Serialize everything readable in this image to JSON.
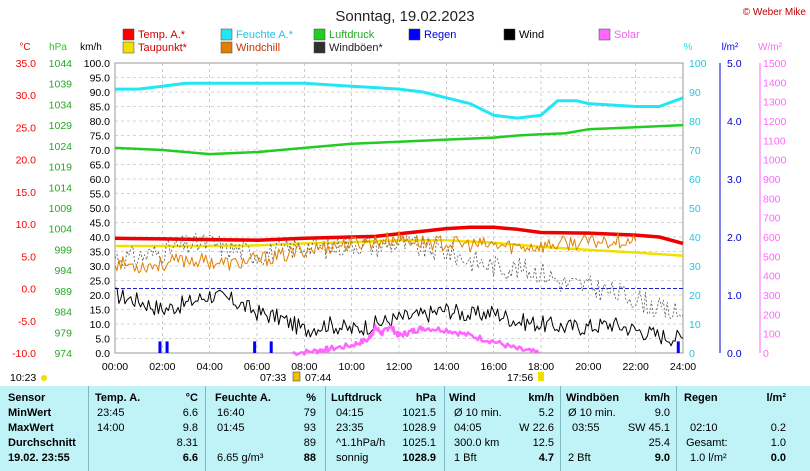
{
  "header": {
    "title": "Sonntag, 19.02.2023",
    "credit": "© Weber Mike"
  },
  "legend": [
    {
      "name": "Temp. A.*",
      "color": "#ff0000"
    },
    {
      "name": "Feuchte A.*",
      "color": "#22e6f2"
    },
    {
      "name": "Luftdruck",
      "color": "#22cc22"
    },
    {
      "name": "Regen",
      "color": "#0000ff"
    },
    {
      "name": "Wind",
      "color": "#000000"
    },
    {
      "name": "Solar",
      "color": "#ff66ff"
    },
    {
      "name": "Taupunkt*",
      "color": "#f0e000"
    },
    {
      "name": "Windchill",
      "color": "#e08000"
    },
    {
      "name": "Windböen*",
      "color": "#303030"
    }
  ],
  "axis_units": {
    "temp": "°C",
    "pressure": "hPa",
    "wind": "km/h",
    "humidity": "%",
    "rain": "l/m²",
    "solar": "W/m²"
  },
  "ticks": {
    "temp": [
      "35.0",
      "30.0",
      "25.0",
      "20.0",
      "15.0",
      "10.0",
      "5.0",
      "0.0",
      "-5.0",
      "-10.0"
    ],
    "pressure": [
      "1044",
      "1039",
      "1034",
      "1029",
      "1024",
      "1019",
      "1014",
      "1009",
      "1004",
      "999",
      "994",
      "989",
      "984",
      "979",
      "974"
    ],
    "wind": [
      "100.0",
      "95.0",
      "90.0",
      "85.0",
      "80.0",
      "75.0",
      "70.0",
      "65.0",
      "60.0",
      "55.0",
      "50.0",
      "45.0",
      "40.0",
      "35.0",
      "30.0",
      "25.0",
      "20.0",
      "15.0",
      "10.0",
      "5.0",
      "0.0"
    ],
    "humidity": [
      "100",
      "90",
      "80",
      "70",
      "60",
      "50",
      "40",
      "30",
      "20",
      "10",
      "0"
    ],
    "rain": [
      "5.0",
      "4.0",
      "3.0",
      "2.0",
      "1.0",
      "0.0"
    ],
    "solar": [
      "1500",
      "1400",
      "1300",
      "1200",
      "1100",
      "1000",
      "900",
      "800",
      "700",
      "600",
      "500",
      "400",
      "300",
      "200",
      "100",
      "0"
    ],
    "time": [
      "00:00",
      "02:00",
      "04:00",
      "06:00",
      "08:00",
      "10:00",
      "12:00",
      "14:00",
      "16:00",
      "18:00",
      "20:00",
      "22:00",
      "24:00"
    ]
  },
  "markers": {
    "left_time": "10:23",
    "sunrise": "07:33",
    "sunrise2": "07:44",
    "sunset": "17:56"
  },
  "chart_data": {
    "type": "line",
    "title": "Sonntag, 19.02.2023",
    "x_unit": "hour",
    "xlim": [
      0,
      24
    ],
    "series": [
      {
        "name": "Temp. A.*",
        "unit": "°C",
        "ylim": [
          -10,
          35
        ],
        "points": [
          [
            0,
            7.8
          ],
          [
            2,
            7.7
          ],
          [
            4,
            7.6
          ],
          [
            6,
            7.5
          ],
          [
            8,
            7.8
          ],
          [
            10,
            8.0
          ],
          [
            11,
            8.1
          ],
          [
            12,
            8.5
          ],
          [
            13,
            8.9
          ],
          [
            14,
            9.3
          ],
          [
            15,
            9.5
          ],
          [
            16,
            9.5
          ],
          [
            17,
            9.2
          ],
          [
            18,
            8.7
          ],
          [
            20,
            8.6
          ],
          [
            22,
            8.3
          ],
          [
            23,
            8.0
          ],
          [
            24,
            7.0
          ]
        ]
      },
      {
        "name": "Taupunkt*",
        "unit": "°C",
        "ylim": [
          -10,
          35
        ],
        "points": [
          [
            0,
            6.6
          ],
          [
            2,
            6.6
          ],
          [
            4,
            6.6
          ],
          [
            6,
            6.7
          ],
          [
            8,
            7.0
          ],
          [
            10,
            7.2
          ],
          [
            12,
            7.5
          ],
          [
            14,
            7.5
          ],
          [
            16,
            7.1
          ],
          [
            18,
            6.5
          ],
          [
            20,
            6.0
          ],
          [
            22,
            5.6
          ],
          [
            24,
            5.1
          ]
        ]
      },
      {
        "name": "Feuchte A.*",
        "unit": "%",
        "ylim": [
          0,
          100
        ],
        "points": [
          [
            0,
            91
          ],
          [
            1,
            91
          ],
          [
            2,
            92
          ],
          [
            3,
            93
          ],
          [
            4,
            93
          ],
          [
            6,
            93
          ],
          [
            8,
            93
          ],
          [
            10,
            92
          ],
          [
            12,
            91
          ],
          [
            13,
            90
          ],
          [
            14,
            88
          ],
          [
            15,
            86
          ],
          [
            16,
            82
          ],
          [
            17,
            81
          ],
          [
            18,
            82
          ],
          [
            18.7,
            87
          ],
          [
            19.5,
            87
          ],
          [
            20,
            86
          ],
          [
            22,
            85
          ],
          [
            23,
            85
          ],
          [
            24,
            88
          ]
        ]
      },
      {
        "name": "Luftdruck",
        "unit": "hPa",
        "ylim": [
          974,
          1044
        ],
        "points": [
          [
            0,
            1023.5
          ],
          [
            2,
            1023
          ],
          [
            4,
            1022
          ],
          [
            6,
            1022.5
          ],
          [
            8,
            1023.5
          ],
          [
            10,
            1024.5
          ],
          [
            12,
            1025
          ],
          [
            14,
            1025.5
          ],
          [
            16,
            1026
          ],
          [
            17,
            1026.5
          ],
          [
            18,
            1026.8
          ],
          [
            19,
            1027
          ],
          [
            20,
            1028
          ],
          [
            22,
            1028.5
          ],
          [
            24,
            1029
          ]
        ]
      },
      {
        "name": "Wind",
        "unit": "km/h",
        "ylim": [
          0,
          100
        ],
        "points": [
          [
            0,
            20
          ],
          [
            1,
            18
          ],
          [
            2,
            15
          ],
          [
            3,
            17
          ],
          [
            4,
            20
          ],
          [
            5,
            18
          ],
          [
            6,
            14
          ],
          [
            7,
            12
          ],
          [
            8,
            8
          ],
          [
            9,
            10
          ],
          [
            10,
            8
          ],
          [
            11,
            10
          ],
          [
            12,
            12
          ],
          [
            13,
            13
          ],
          [
            14,
            15
          ],
          [
            15,
            13
          ],
          [
            16,
            14
          ],
          [
            17,
            11
          ],
          [
            18,
            10
          ],
          [
            19,
            9
          ],
          [
            20,
            9
          ],
          [
            21,
            10
          ],
          [
            22,
            8
          ],
          [
            23,
            6
          ],
          [
            24,
            5
          ]
        ]
      },
      {
        "name": "Windböen*",
        "unit": "km/h",
        "ylim": [
          0,
          100
        ],
        "points": [
          [
            0,
            33
          ],
          [
            1,
            33
          ],
          [
            2,
            35
          ],
          [
            3,
            37
          ],
          [
            4,
            38
          ],
          [
            5,
            36
          ],
          [
            6,
            34
          ],
          [
            7,
            35
          ],
          [
            8,
            37
          ],
          [
            9,
            36
          ],
          [
            10,
            38
          ],
          [
            11,
            37
          ],
          [
            12,
            38
          ],
          [
            13,
            36
          ],
          [
            14,
            35
          ],
          [
            15,
            32
          ],
          [
            16,
            30
          ],
          [
            17,
            29
          ],
          [
            18,
            28
          ],
          [
            19,
            24
          ],
          [
            20,
            23
          ],
          [
            21,
            21
          ],
          [
            22,
            19
          ],
          [
            23,
            15
          ],
          [
            24,
            13
          ]
        ]
      },
      {
        "name": "Windchill",
        "unit": "°C",
        "ylim": [
          -10,
          35
        ],
        "points": [
          [
            0,
            4
          ],
          [
            1,
            3.5
          ],
          [
            2,
            3.8
          ],
          [
            3,
            4.5
          ],
          [
            4,
            4.2
          ],
          [
            5,
            3.8
          ],
          [
            6,
            4.5
          ],
          [
            7,
            5
          ],
          [
            8,
            6
          ],
          [
            9,
            6.5
          ],
          [
            10,
            7
          ],
          [
            11,
            7.3
          ],
          [
            12,
            7.8
          ],
          [
            13,
            7.2
          ],
          [
            14,
            7.0
          ],
          [
            15,
            6.8
          ],
          [
            16,
            6.7
          ],
          [
            17,
            6.5
          ],
          [
            18,
            6.6
          ],
          [
            19,
            7.0
          ],
          [
            20,
            7.2
          ],
          [
            21,
            7.5
          ],
          [
            22,
            7.3
          ]
        ]
      },
      {
        "name": "Solar",
        "unit": "W/m²",
        "ylim": [
          0,
          1500
        ],
        "points": [
          [
            7.5,
            0
          ],
          [
            8.5,
            10
          ],
          [
            9,
            20
          ],
          [
            10,
            40
          ],
          [
            10.7,
            70
          ],
          [
            11,
            130
          ],
          [
            11.3,
            100
          ],
          [
            11.6,
            140
          ],
          [
            12,
            90
          ],
          [
            12.5,
            110
          ],
          [
            13,
            130
          ],
          [
            14,
            120
          ],
          [
            15,
            90
          ],
          [
            16,
            60
          ],
          [
            17,
            20
          ],
          [
            17.9,
            0
          ]
        ]
      },
      {
        "name": "Regen",
        "unit": "l/m²",
        "ylim": [
          0,
          5
        ],
        "type": "bar",
        "bars": [
          [
            1.9,
            0.2
          ],
          [
            2.2,
            0.2
          ],
          [
            5.9,
            0.2
          ],
          [
            6.6,
            0.2
          ],
          [
            23.8,
            0.2
          ]
        ]
      }
    ]
  },
  "table": {
    "headers": [
      "Sensor",
      "Temp. A.",
      "°C",
      "Feuchte A.",
      "%",
      "Luftdruck",
      "hPa",
      "Wind",
      "km/h",
      "Windböen",
      "km/h",
      "Regen",
      "l/m²"
    ],
    "rows": [
      {
        "label": "MinWert",
        "t_time": "23:45",
        "t_val": "6.6",
        "h_time": "16:40",
        "h_val": "79",
        "p_time": "04:15",
        "p_val": "1021.5",
        "w_label": "Ø 10 min.",
        "w_val": "5.2",
        "g_label": "Ø 10 min.",
        "g_val": "9.0",
        "r_label": "",
        "r_val": ""
      },
      {
        "label": "MaxWert",
        "t_time": "14:00",
        "t_val": "9.8",
        "h_time": "01:45",
        "h_val": "93",
        "p_time": "23:35",
        "p_val": "1028.9",
        "w_time": "04:05",
        "w_dir": "W 22.6",
        "g_time": "03:55",
        "g_dir": "SW 45.1",
        "r_label": "02:10",
        "r_val": "0.2"
      },
      {
        "label": "Durchschnitt",
        "t_time": "",
        "t_val": "8.31",
        "h_time": "",
        "h_val": "89",
        "p_time": "^1.1hPa/h",
        "p_val": "1025.1",
        "w_label": "300.0 km",
        "w_val": "12.5",
        "g_label": "",
        "g_val": "25.4",
        "r_label": "Gesamt:",
        "r_val": "1.0"
      },
      {
        "label": "19.02. 23:55",
        "t_time": "",
        "t_val": "6.6",
        "h_time": "6.65 g/m³",
        "h_val": "88",
        "p_time": "sonnig",
        "p_val": "1028.9",
        "w_label": "1 Bft",
        "w_val": "4.7",
        "g_label": "2 Bft",
        "g_val": "9.0",
        "r_label": "1.0 l/m²",
        "r_val": "0.0"
      }
    ]
  }
}
